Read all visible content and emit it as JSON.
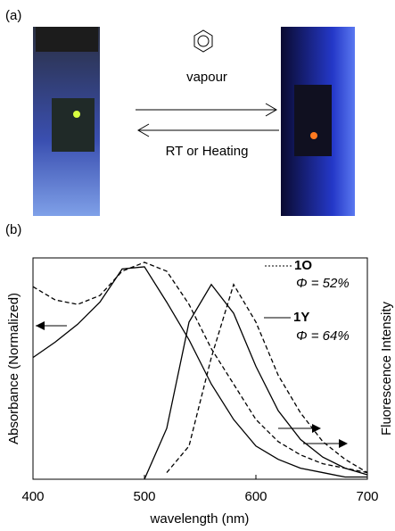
{
  "panel_a": {
    "label": "(a)",
    "forward": "vapour",
    "reverse": "RT or Heating"
  },
  "chart_data": {
    "type": "line",
    "panel_label": "(b)",
    "x_label": "wavelength (nm)",
    "y_label": "Absorbance (Normalized)",
    "y2_label": "Fluorescence Intensity",
    "x": [
      400,
      420,
      440,
      460,
      480,
      500,
      520,
      540,
      560,
      580,
      600,
      620,
      640,
      660,
      680,
      700
    ],
    "xlim": [
      400,
      700
    ],
    "xticks": [
      400,
      500,
      600,
      700
    ],
    "ylim": [
      0,
      1
    ],
    "y2lim": [
      0,
      1
    ],
    "series": [
      {
        "color": "#000000",
        "style": "solid",
        "values": [
          0.55,
          0.62,
          0.7,
          0.8,
          0.95,
          0.96,
          0.8,
          0.63,
          0.43,
          0.27,
          0.15,
          0.09,
          0.05,
          0.03,
          0.01,
          0.01
        ]
      },
      {
        "color": "#000000",
        "style": "dashed",
        "values": [
          0.87,
          0.81,
          0.79,
          0.83,
          0.94,
          0.98,
          0.94,
          0.79,
          0.59,
          0.43,
          0.27,
          0.17,
          0.11,
          0.07,
          0.05,
          0.03
        ]
      },
      {
        "color": "#000000",
        "style": "solid",
        "axis": "y2",
        "values": [
          null,
          null,
          null,
          null,
          null,
          0,
          0.23,
          0.71,
          0.88,
          0.75,
          0.51,
          0.31,
          0.18,
          0.1,
          0.05,
          0.02
        ]
      },
      {
        "color": "#000000",
        "style": "dashed",
        "axis": "y2",
        "values": [
          null,
          null,
          null,
          null,
          null,
          null,
          0.03,
          0.15,
          0.55,
          0.88,
          0.71,
          0.47,
          0.3,
          0.17,
          0.09,
          0.03
        ]
      }
    ],
    "legend": [
      {
        "label": "1O",
        "style": "dotted",
        "quantum_yield": "Φ = 52%"
      },
      {
        "label": "1Y",
        "style": "solid",
        "quantum_yield": "Φ = 64%"
      }
    ]
  }
}
